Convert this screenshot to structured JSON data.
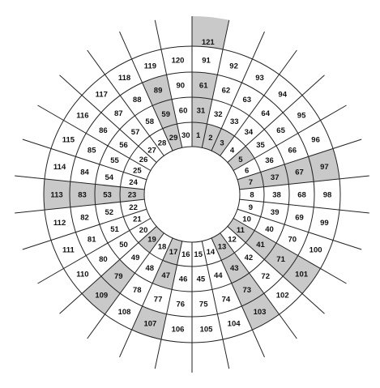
{
  "colors": {
    "background": "#ffffff",
    "shaded": "#c9c9c9",
    "line": "#222222",
    "text": "#111111"
  },
  "diagram": {
    "rings": [
      [
        "1",
        "2",
        "3",
        "4",
        "5",
        "6",
        "7",
        "8",
        "9",
        "10",
        "11",
        "12",
        "13",
        "14",
        "15",
        "16",
        "17",
        "18",
        "19",
        "20",
        "21",
        "22",
        "23",
        "24",
        "25",
        "26",
        "27",
        "28",
        "29",
        "30"
      ],
      [
        "31",
        "32",
        "33",
        "34",
        "35",
        "36",
        "37",
        "38",
        "39",
        "40",
        "41",
        "42",
        "43",
        "44",
        "45",
        "46",
        "47",
        "48",
        "49",
        "50",
        "51",
        "52",
        "53",
        "54",
        "55",
        "56",
        "57",
        "58",
        "59",
        "60"
      ],
      [
        "61",
        "62",
        "63",
        "64",
        "65",
        "66",
        "67",
        "68",
        "69",
        "70",
        "71",
        "72",
        "73",
        "74",
        "75",
        "76",
        "77",
        "78",
        "79",
        "80",
        "81",
        "82",
        "83",
        "84",
        "85",
        "86",
        "87",
        "88",
        "89",
        "90"
      ],
      [
        "91",
        "92",
        "93",
        "94",
        "95",
        "96",
        "97",
        "98",
        "99",
        "100",
        "101",
        "102",
        "103",
        "104",
        "105",
        "106",
        "107",
        "108",
        "109",
        "110",
        "111",
        "112",
        "113",
        "114",
        "115",
        "116",
        "117",
        "118",
        "119",
        "120"
      ],
      [
        "121"
      ]
    ],
    "shaded_numbers": [
      1,
      2,
      3,
      5,
      7,
      11,
      13,
      17,
      19,
      23,
      29,
      31,
      37,
      41,
      43,
      47,
      53,
      59,
      61,
      67,
      71,
      73,
      79,
      83,
      89,
      97,
      101,
      103,
      107,
      109,
      113,
      121
    ]
  }
}
